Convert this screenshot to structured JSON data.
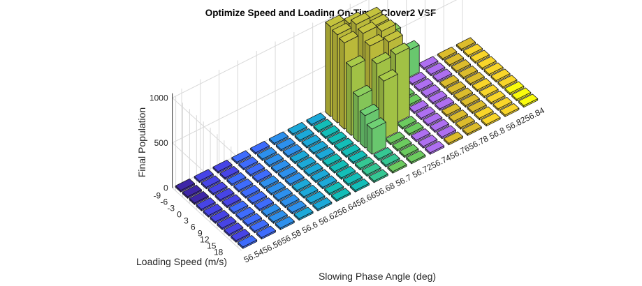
{
  "chart_data": {
    "type": "bar3",
    "title": "Optimize Speed and Loading On-Time, Clover2 VSF",
    "xlabel": "Slowing Phase Angle (deg)",
    "ylabel": "Loading Speed (m/s)",
    "zlabel": "Final Population",
    "x_ticks": [
      "56.54",
      "56.56",
      "56.58",
      "56.6",
      "56.62",
      "56.64",
      "56.66",
      "56.68",
      "56.7",
      "56.72",
      "56.74",
      "56.76",
      "56.78",
      "56.8",
      "56.82",
      "56.84"
    ],
    "y_ticks": [
      "-9",
      "-6",
      "-3",
      "0",
      "3",
      "6",
      "9",
      "12",
      "15",
      "18"
    ],
    "z_ticks": [
      "0",
      "500",
      "1000"
    ],
    "zlim": [
      0,
      1000
    ],
    "grid": true,
    "colormap": [
      "#3e26a8",
      "#4744e6",
      "#3e6cfc",
      "#2d90ed",
      "#1ca9d9",
      "#13beb8",
      "#35c793",
      "#6ccb5f",
      "#ae6ff1",
      "#dcbc2c",
      "#f8d52a",
      "#f9fb0e"
    ],
    "bars": [
      {
        "x": 56.7,
        "y": -9,
        "z": 1000
      },
      {
        "x": 56.7,
        "y": -6,
        "z": 980
      },
      {
        "x": 56.7,
        "y": -3,
        "z": 960
      },
      {
        "x": 56.7,
        "y": 0,
        "z": 760
      },
      {
        "x": 56.7,
        "y": 3,
        "z": 500
      },
      {
        "x": 56.7,
        "y": 6,
        "z": 360
      },
      {
        "x": 56.7,
        "y": 9,
        "z": 280
      },
      {
        "x": 56.72,
        "y": -9,
        "z": 930
      },
      {
        "x": 56.72,
        "y": -6,
        "z": 990
      },
      {
        "x": 56.72,
        "y": -3,
        "z": 960
      },
      {
        "x": 56.72,
        "y": 0,
        "z": 890
      },
      {
        "x": 56.72,
        "y": 3,
        "z": 760
      },
      {
        "x": 56.72,
        "y": 6,
        "z": 640
      },
      {
        "x": 56.74,
        "y": -9,
        "z": 880
      },
      {
        "x": 56.74,
        "y": -6,
        "z": 870
      },
      {
        "x": 56.74,
        "y": -3,
        "z": 880
      },
      {
        "x": 56.74,
        "y": 0,
        "z": 830
      },
      {
        "x": 56.74,
        "y": 3,
        "z": 760
      },
      {
        "x": 56.76,
        "y": -9,
        "z": 600
      },
      {
        "x": 56.76,
        "y": -6,
        "z": 420
      },
      {
        "x": 56.78,
        "y": -9,
        "z": 300
      }
    ]
  }
}
